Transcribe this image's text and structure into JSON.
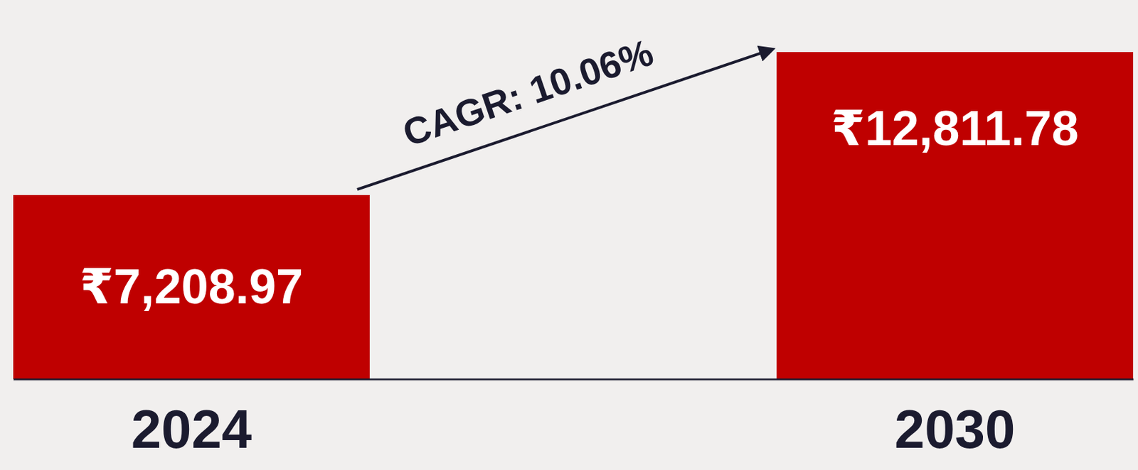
{
  "chart_data": {
    "type": "bar",
    "categories": [
      "2024",
      "2030"
    ],
    "values": [
      7208.97,
      12811.78
    ],
    "value_labels": [
      "₹7,208.97",
      "₹12,811.78"
    ],
    "color": "#bf0000",
    "ylim": [
      0,
      13000
    ],
    "data_labels": true,
    "tick_labels": "x",
    "annotations": [
      "CAGR: 10.06%"
    ]
  }
}
